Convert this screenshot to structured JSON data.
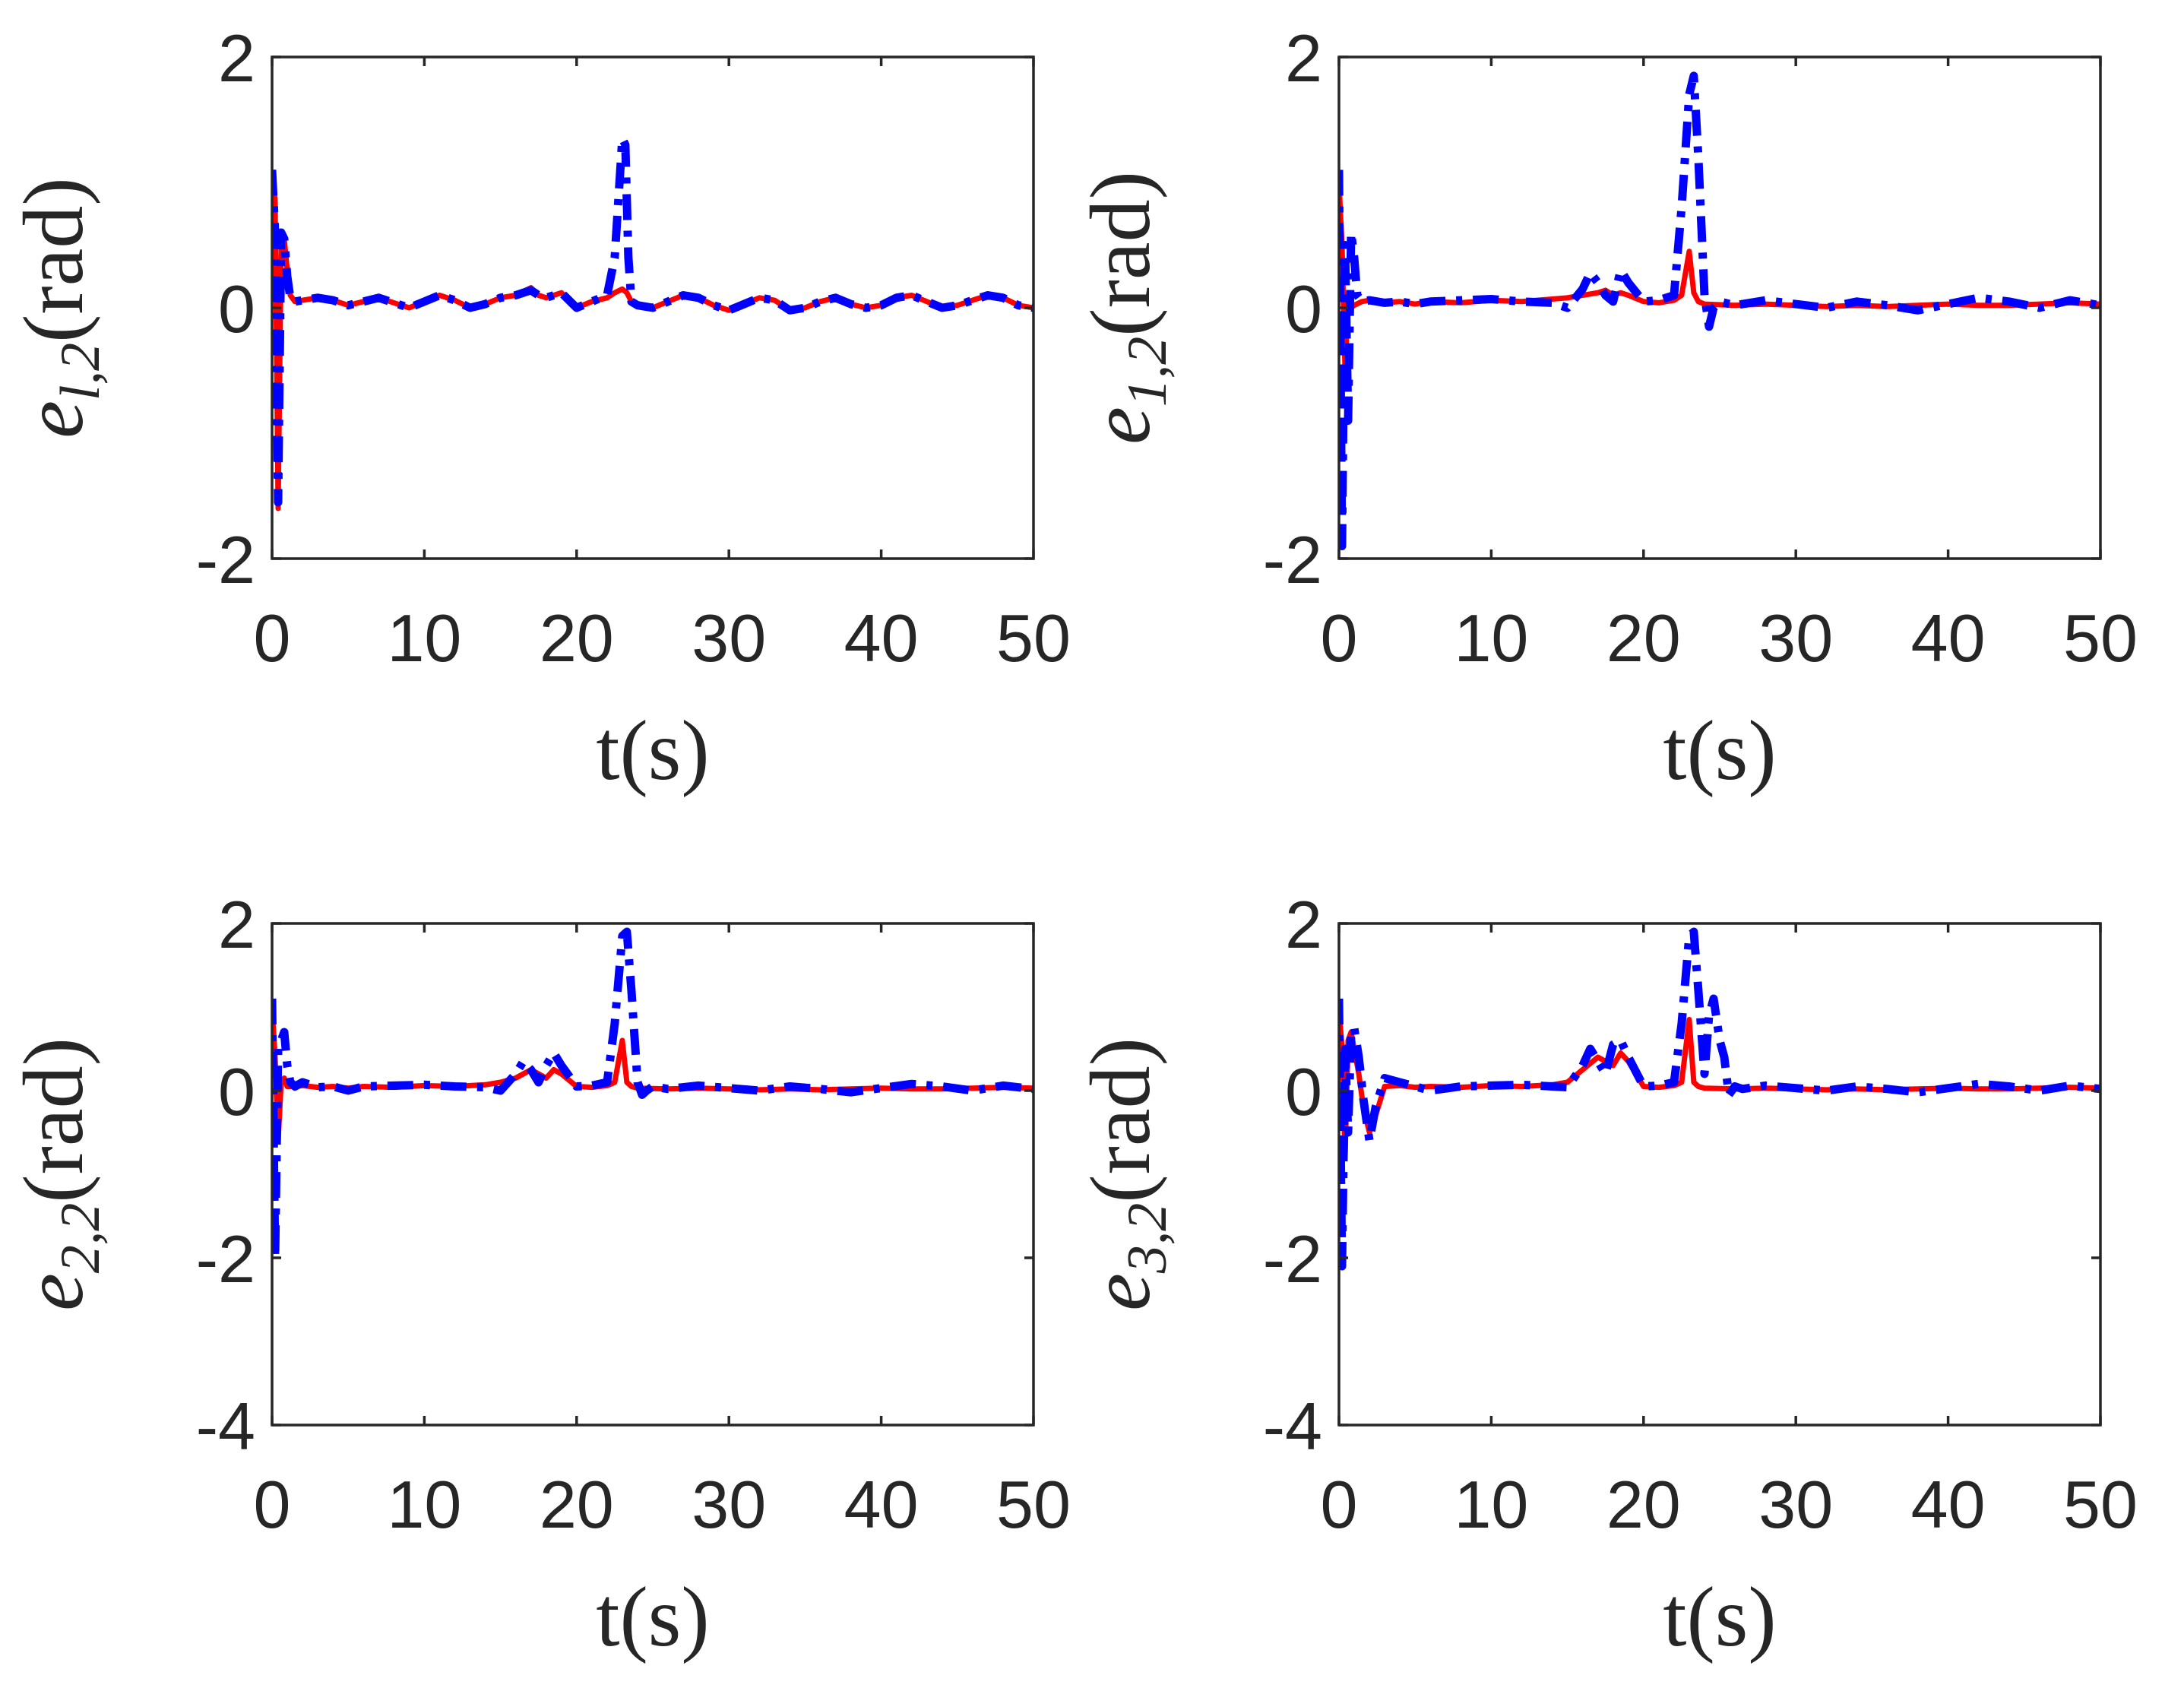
{
  "figure": {
    "title": ""
  },
  "chart_data": [
    {
      "type": "line",
      "ylabel": {
        "var": "e",
        "sub": "l,2",
        "unit": "(rad)"
      },
      "xlabel": {
        "var": "t",
        "unit": "(s)"
      },
      "xlim": [
        0,
        50
      ],
      "ylim": [
        -2,
        2
      ],
      "xticks": [
        0,
        10,
        20,
        30,
        40,
        50
      ],
      "xtick_labels": [
        "0",
        "10",
        "20",
        "30",
        "40",
        "50"
      ],
      "yticks": [
        -2,
        0,
        2
      ],
      "ytick_labels": [
        "-2",
        "0",
        "2"
      ],
      "series": [
        {
          "name": "red",
          "color": "#ff0000",
          "style": "solid",
          "x": [
            0,
            0.2,
            0.4,
            0.6,
            0.8,
            1.0,
            1.2,
            1.5,
            2,
            3,
            4,
            5,
            6,
            7,
            8,
            9,
            10,
            11,
            12,
            13,
            14,
            15,
            16,
            17,
            17.5,
            18,
            19,
            20,
            21,
            22,
            22.5,
            23,
            23.3,
            23.6,
            24,
            25,
            26,
            27,
            28,
            29,
            30,
            31,
            32,
            33,
            34,
            35,
            36,
            37,
            38,
            39,
            40,
            41,
            42,
            43,
            44,
            45,
            46,
            47,
            48,
            49,
            50
          ],
          "y": [
            1.1,
            0.85,
            -1.6,
            0.5,
            0.55,
            0.3,
            0.1,
            0.05,
            0.06,
            0.08,
            0.06,
            0.02,
            0.05,
            0.08,
            0.04,
            0.0,
            0.05,
            0.1,
            0.06,
            0.0,
            0.03,
            0.08,
            0.1,
            0.16,
            0.1,
            0.08,
            0.12,
            0.0,
            0.05,
            0.08,
            0.12,
            0.15,
            0.12,
            0.05,
            0.02,
            0.0,
            0.05,
            0.1,
            0.08,
            0.02,
            -0.02,
            0.03,
            0.08,
            0.06,
            -0.02,
            0.0,
            0.05,
            0.08,
            0.03,
            0.0,
            0.02,
            0.08,
            0.1,
            0.05,
            0.0,
            0.02,
            0.06,
            0.1,
            0.08,
            0.02,
            0.0
          ]
        },
        {
          "name": "blue",
          "color": "#0000ff",
          "style": "dashdot",
          "x": [
            0,
            0.2,
            0.4,
            0.6,
            0.8,
            1.0,
            1.2,
            1.5,
            2,
            3,
            4,
            5,
            6,
            7,
            8,
            9,
            10,
            11,
            12,
            13,
            14,
            15,
            16,
            17,
            17.5,
            18,
            19,
            20,
            21,
            22,
            22.5,
            23,
            23.2,
            23.4,
            23.6,
            24,
            25,
            26,
            27,
            28,
            29,
            30,
            31,
            32,
            33,
            34,
            35,
            36,
            37,
            38,
            39,
            40,
            41,
            42,
            43,
            44,
            45,
            46,
            47,
            48,
            49,
            50
          ],
          "y": [
            1.1,
            0.6,
            -1.55,
            0.6,
            0.55,
            0.25,
            0.08,
            0.05,
            0.06,
            0.08,
            0.06,
            0.02,
            0.05,
            0.08,
            0.04,
            0.0,
            0.05,
            0.1,
            0.06,
            0.0,
            0.03,
            0.08,
            0.1,
            0.14,
            0.1,
            0.08,
            0.12,
            0.0,
            0.05,
            0.1,
            0.4,
            1.35,
            1.3,
            0.4,
            0.05,
            0.02,
            0.0,
            0.05,
            0.1,
            0.08,
            0.02,
            -0.02,
            0.03,
            0.08,
            0.06,
            -0.02,
            0.0,
            0.05,
            0.08,
            0.03,
            0.0,
            0.02,
            0.08,
            0.1,
            0.05,
            0.0,
            0.02,
            0.06,
            0.1,
            0.08,
            0.02,
            0.0
          ]
        }
      ]
    },
    {
      "type": "line",
      "ylabel": {
        "var": "e",
        "sub": "1,2",
        "unit": "(rad)"
      },
      "xlabel": {
        "var": "t",
        "unit": "(s)"
      },
      "xlim": [
        0,
        50
      ],
      "ylim": [
        -2,
        2
      ],
      "xticks": [
        0,
        10,
        20,
        30,
        40,
        50
      ],
      "xtick_labels": [
        "0",
        "10",
        "20",
        "30",
        "40",
        "50"
      ],
      "yticks": [
        -2,
        0,
        2
      ],
      "ytick_labels": [
        "-2",
        "0",
        "2"
      ],
      "series": [
        {
          "name": "red",
          "color": "#ff0000",
          "style": "solid",
          "x": [
            0,
            0.2,
            0.4,
            0.6,
            0.8,
            1.0,
            1.5,
            2,
            3,
            4,
            5,
            6,
            8,
            10,
            12,
            14,
            15,
            16,
            17,
            17.5,
            18,
            18.5,
            19,
            20,
            21,
            22,
            22.5,
            23,
            23.3,
            23.6,
            24,
            26,
            28,
            30,
            32,
            34,
            36,
            38,
            40,
            42,
            44,
            46,
            48,
            50
          ],
          "y": [
            1.0,
            0.5,
            -0.5,
            0.05,
            0.0,
            0.02,
            0.05,
            0.06,
            0.04,
            0.05,
            0.03,
            0.05,
            0.04,
            0.06,
            0.05,
            0.07,
            0.08,
            0.1,
            0.12,
            0.14,
            0.1,
            0.12,
            0.1,
            0.05,
            0.04,
            0.06,
            0.1,
            0.45,
            0.12,
            0.05,
            0.03,
            0.02,
            0.03,
            0.02,
            0.01,
            0.02,
            0.01,
            0.02,
            0.03,
            0.02,
            0.02,
            0.03,
            0.04,
            0.03
          ]
        },
        {
          "name": "blue",
          "color": "#0000ff",
          "style": "dashdot",
          "x": [
            0,
            0.2,
            0.4,
            0.6,
            0.8,
            1.0,
            1.2,
            1.5,
            2,
            3,
            4,
            5,
            6,
            8,
            10,
            12,
            14,
            15,
            16,
            16.5,
            17,
            17.5,
            18,
            18.5,
            19,
            20,
            21,
            22,
            22.5,
            23,
            23.3,
            23.6,
            24,
            24.3,
            24.6,
            25,
            26,
            28,
            30,
            32,
            34,
            36,
            38,
            40,
            42,
            44,
            46,
            48,
            50
          ],
          "y": [
            1.1,
            -1.9,
            0.5,
            -0.9,
            0.6,
            0.4,
            0.1,
            0.05,
            0.06,
            0.04,
            0.05,
            0.03,
            0.05,
            0.06,
            0.07,
            0.05,
            0.04,
            0.0,
            0.15,
            0.28,
            0.2,
            0.1,
            0.05,
            0.3,
            0.2,
            0.05,
            0.06,
            0.1,
            0.8,
            1.7,
            1.85,
            1.2,
            0.1,
            -0.15,
            0.0,
            0.05,
            0.02,
            0.06,
            0.03,
            0.0,
            0.05,
            0.02,
            -0.02,
            0.03,
            0.08,
            0.05,
            0.0,
            0.06,
            0.02
          ]
        }
      ]
    },
    {
      "type": "line",
      "ylabel": {
        "var": "e",
        "sub": "2,2",
        "unit": "(rad)"
      },
      "xlabel": {
        "var": "t",
        "unit": "(s)"
      },
      "xlim": [
        0,
        50
      ],
      "ylim": [
        -4,
        2
      ],
      "xticks": [
        0,
        10,
        20,
        30,
        40,
        50
      ],
      "xtick_labels": [
        "0",
        "10",
        "20",
        "30",
        "40",
        "50"
      ],
      "yticks": [
        -4,
        -2,
        0,
        2
      ],
      "ytick_labels": [
        "-4",
        "-2",
        "0",
        "2"
      ],
      "series": [
        {
          "name": "red",
          "color": "#ff0000",
          "style": "solid",
          "x": [
            0,
            0.2,
            0.4,
            0.6,
            0.8,
            1.0,
            1.5,
            2,
            3,
            4,
            5,
            6,
            8,
            10,
            12,
            14,
            15,
            16,
            17,
            17.5,
            18,
            18.5,
            19,
            20,
            21,
            22,
            22.5,
            23,
            23.3,
            23.6,
            24,
            26,
            28,
            30,
            32,
            34,
            36,
            38,
            40,
            42,
            44,
            46,
            48,
            50
          ],
          "y": [
            1.0,
            0.4,
            -0.6,
            0.1,
            0.15,
            0.05,
            0.05,
            0.06,
            0.04,
            0.05,
            0.03,
            0.05,
            0.04,
            0.06,
            0.05,
            0.07,
            0.1,
            0.15,
            0.25,
            0.2,
            0.15,
            0.25,
            0.2,
            0.05,
            0.04,
            0.06,
            0.1,
            0.6,
            0.1,
            0.05,
            0.03,
            0.02,
            0.03,
            0.02,
            0.01,
            0.02,
            0.01,
            0.02,
            0.03,
            0.02,
            0.02,
            0.03,
            0.04,
            0.03
          ]
        },
        {
          "name": "blue",
          "color": "#0000ff",
          "style": "dashdot",
          "x": [
            0,
            0.2,
            0.4,
            0.6,
            0.8,
            1.0,
            1.2,
            1.5,
            2,
            3,
            4,
            5,
            6,
            8,
            10,
            12,
            14,
            15,
            16,
            16.5,
            17,
            17.5,
            18,
            18.5,
            19,
            20,
            21,
            22,
            22.5,
            23,
            23.3,
            23.6,
            24,
            24.3,
            24.6,
            25,
            26,
            28,
            30,
            32,
            34,
            36,
            38,
            40,
            42,
            44,
            46,
            48,
            50
          ],
          "y": [
            1.1,
            -2.0,
            0.5,
            0.6,
            0.7,
            0.3,
            0.1,
            0.05,
            0.1,
            0.04,
            0.05,
            0.0,
            0.05,
            0.06,
            0.07,
            0.05,
            0.04,
            0.0,
            0.2,
            0.35,
            0.25,
            0.1,
            0.3,
            0.45,
            0.3,
            0.05,
            0.06,
            0.1,
            0.8,
            1.85,
            1.9,
            1.2,
            0.1,
            -0.05,
            0.0,
            0.05,
            0.02,
            0.06,
            0.03,
            0.0,
            0.05,
            0.02,
            -0.02,
            0.03,
            0.08,
            0.05,
            0.0,
            0.06,
            0.02
          ]
        }
      ]
    },
    {
      "type": "line",
      "ylabel": {
        "var": "e",
        "sub": "3,2",
        "unit": "(rad)"
      },
      "xlabel": {
        "var": "t",
        "unit": "(s)"
      },
      "xlim": [
        0,
        50
      ],
      "ylim": [
        -4,
        2
      ],
      "xticks": [
        0,
        10,
        20,
        30,
        40,
        50
      ],
      "xtick_labels": [
        "0",
        "10",
        "20",
        "30",
        "40",
        "50"
      ],
      "yticks": [
        -4,
        -2,
        0,
        2
      ],
      "ytick_labels": [
        "-4",
        "-2",
        "0",
        "2"
      ],
      "series": [
        {
          "name": "red",
          "color": "#ff0000",
          "style": "solid",
          "x": [
            0,
            0.2,
            0.4,
            0.6,
            0.8,
            1.0,
            1.3,
            1.6,
            2.0,
            2.4,
            3,
            4,
            5,
            6,
            8,
            10,
            12,
            14,
            15,
            16,
            17,
            17.5,
            18,
            18.5,
            19,
            20,
            21,
            22,
            22.5,
            23,
            23.3,
            23.6,
            24,
            26,
            28,
            30,
            32,
            34,
            36,
            38,
            40,
            42,
            44,
            46,
            48,
            50
          ],
          "y": [
            1.0,
            0.5,
            -0.8,
            0.6,
            0.7,
            0.5,
            0.2,
            -0.2,
            -0.5,
            -0.3,
            0.05,
            0.06,
            0.04,
            0.05,
            0.04,
            0.06,
            0.05,
            0.07,
            0.1,
            0.25,
            0.4,
            0.35,
            0.3,
            0.45,
            0.35,
            0.05,
            0.04,
            0.06,
            0.1,
            0.85,
            0.1,
            0.05,
            0.03,
            0.02,
            0.03,
            0.02,
            0.01,
            0.02,
            0.01,
            0.02,
            0.03,
            0.02,
            0.02,
            0.03,
            0.04,
            0.03
          ]
        },
        {
          "name": "blue",
          "color": "#0000ff",
          "style": "dashdot",
          "x": [
            0,
            0.2,
            0.4,
            0.6,
            0.8,
            1.0,
            1.3,
            1.6,
            2.0,
            2.4,
            3,
            4,
            5,
            6,
            8,
            10,
            12,
            14,
            15,
            16,
            16.5,
            17,
            17.5,
            18,
            18.5,
            19,
            20,
            21,
            22,
            22.5,
            23,
            23.3,
            23.6,
            24,
            24.3,
            24.6,
            25,
            25.3,
            25.6,
            26,
            26.5,
            28,
            30,
            32,
            34,
            36,
            38,
            40,
            42,
            44,
            46,
            48,
            50
          ],
          "y": [
            1.1,
            -2.1,
            0.5,
            -0.5,
            0.7,
            0.75,
            0.4,
            -0.1,
            -0.6,
            -0.2,
            0.15,
            0.1,
            0.05,
            0.0,
            0.05,
            0.06,
            0.07,
            0.05,
            0.04,
            0.3,
            0.5,
            0.35,
            0.2,
            0.55,
            0.6,
            0.4,
            0.05,
            0.06,
            0.1,
            0.8,
            1.85,
            1.9,
            1.2,
            0.2,
            0.9,
            1.1,
            0.6,
            0.4,
            -0.05,
            0.05,
            0.02,
            0.06,
            0.03,
            0.0,
            0.05,
            0.02,
            -0.02,
            0.03,
            0.08,
            0.05,
            0.0,
            0.06,
            0.02
          ]
        }
      ]
    }
  ]
}
